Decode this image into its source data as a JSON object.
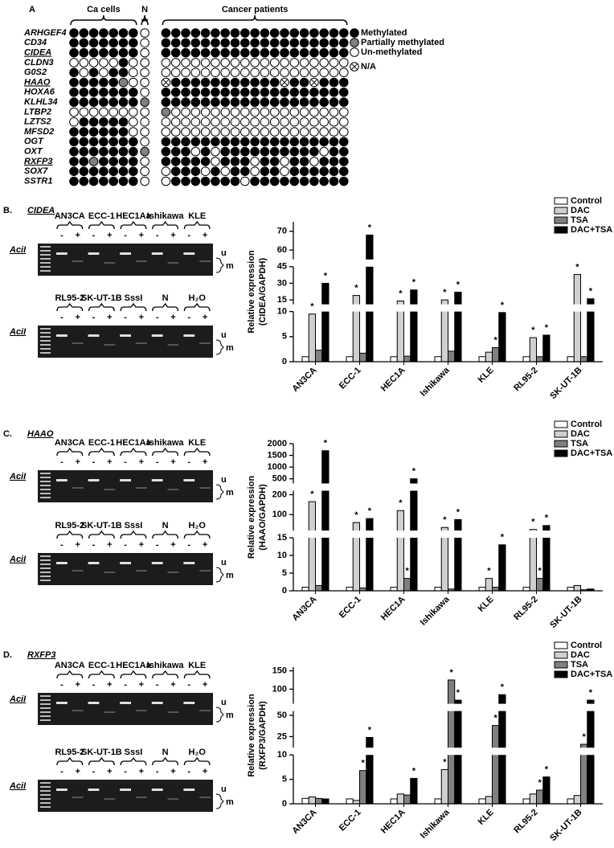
{
  "panel_a": {
    "label": "A",
    "groups": [
      {
        "label": "Ca cells",
        "count": 7
      },
      {
        "label": "N",
        "count": 1
      },
      {
        "label": "Cancer patients",
        "count": 19
      }
    ],
    "legend": [
      {
        "label": "Methylated",
        "color": "#000000"
      },
      {
        "label": "Partially methylated",
        "color": "#808080"
      },
      {
        "label": "Un-methylated",
        "color": "#ffffff"
      },
      {
        "label": "N/A",
        "color": "#ffffff",
        "cross": true
      }
    ],
    "rows": [
      {
        "gene": "ARHGEF4",
        "underline": false,
        "status": [
          0,
          0,
          0,
          0,
          0,
          0,
          0,
          2,
          0,
          0,
          0,
          0,
          0,
          0,
          0,
          0,
          0,
          0,
          0,
          0,
          0,
          0,
          0,
          0,
          0,
          0,
          0
        ]
      },
      {
        "gene": "CD34",
        "underline": false,
        "status": [
          0,
          0,
          0,
          0,
          0,
          0,
          0,
          2,
          0,
          0,
          0,
          0,
          0,
          0,
          0,
          0,
          0,
          0,
          0,
          0,
          0,
          0,
          0,
          0,
          0,
          0,
          0
        ]
      },
      {
        "gene": "CIDEA",
        "underline": true,
        "status": [
          0,
          0,
          0,
          0,
          0,
          0,
          0,
          2,
          0,
          0,
          0,
          0,
          0,
          0,
          0,
          0,
          0,
          0,
          0,
          0,
          0,
          0,
          0,
          0,
          0,
          0,
          0
        ]
      },
      {
        "gene": "CLDN3",
        "underline": false,
        "status": [
          2,
          2,
          2,
          2,
          2,
          0,
          2,
          2,
          2,
          2,
          2,
          2,
          2,
          2,
          2,
          2,
          2,
          2,
          2,
          2,
          2,
          2,
          2,
          2,
          2,
          2,
          2
        ]
      },
      {
        "gene": "G0S2",
        "underline": false,
        "status": [
          0,
          2,
          0,
          2,
          0,
          0,
          2,
          2,
          2,
          2,
          2,
          2,
          2,
          2,
          2,
          2,
          2,
          2,
          2,
          2,
          2,
          2,
          2,
          2,
          2,
          2,
          2
        ]
      },
      {
        "gene": "HAAO",
        "underline": true,
        "status": [
          0,
          0,
          0,
          0,
          0,
          1,
          2,
          2,
          3,
          0,
          0,
          0,
          0,
          0,
          0,
          0,
          0,
          0,
          0,
          0,
          3,
          0,
          0,
          3,
          0,
          0,
          0
        ]
      },
      {
        "gene": "HOXA6",
        "underline": false,
        "status": [
          0,
          0,
          0,
          0,
          0,
          0,
          0,
          2,
          0,
          0,
          0,
          0,
          0,
          0,
          0,
          0,
          0,
          0,
          0,
          0,
          0,
          0,
          0,
          0,
          0,
          0,
          0
        ]
      },
      {
        "gene": "KLHL34",
        "underline": false,
        "status": [
          0,
          0,
          0,
          0,
          0,
          0,
          0,
          1,
          0,
          0,
          0,
          0,
          0,
          0,
          0,
          0,
          0,
          0,
          0,
          0,
          0,
          0,
          0,
          0,
          0,
          0,
          0
        ]
      },
      {
        "gene": "LTBP2",
        "underline": false,
        "status": [
          2,
          2,
          2,
          2,
          2,
          2,
          2,
          2,
          1,
          2,
          2,
          2,
          2,
          2,
          2,
          2,
          2,
          2,
          2,
          2,
          2,
          2,
          2,
          2,
          2,
          2,
          2
        ]
      },
      {
        "gene": "LZTS2",
        "underline": false,
        "status": [
          2,
          0,
          0,
          0,
          0,
          0,
          2,
          2,
          2,
          2,
          2,
          2,
          2,
          2,
          2,
          2,
          2,
          2,
          2,
          2,
          2,
          2,
          2,
          2,
          2,
          2,
          2
        ]
      },
      {
        "gene": "MFSD2",
        "underline": false,
        "status": [
          0,
          0,
          0,
          0,
          0,
          0,
          2,
          2,
          2,
          2,
          2,
          2,
          2,
          2,
          2,
          2,
          2,
          2,
          2,
          2,
          2,
          2,
          2,
          2,
          2,
          2,
          2
        ]
      },
      {
        "gene": "OGT",
        "underline": false,
        "status": [
          0,
          0,
          0,
          0,
          0,
          0,
          0,
          2,
          0,
          0,
          0,
          0,
          0,
          0,
          0,
          0,
          0,
          0,
          0,
          0,
          0,
          0,
          0,
          0,
          0,
          0,
          0
        ]
      },
      {
        "gene": "OXT",
        "underline": false,
        "status": [
          0,
          0,
          0,
          0,
          0,
          0,
          0,
          1,
          0,
          0,
          0,
          2,
          0,
          2,
          0,
          0,
          0,
          0,
          0,
          0,
          0,
          0,
          0,
          0,
          2,
          0,
          0
        ]
      },
      {
        "gene": "RXFP3",
        "underline": true,
        "status": [
          0,
          0,
          1,
          0,
          0,
          0,
          0,
          2,
          0,
          0,
          0,
          0,
          0,
          2,
          0,
          0,
          0,
          2,
          0,
          0,
          2,
          0,
          0,
          2,
          0,
          0,
          0
        ]
      },
      {
        "gene": "SOX7",
        "underline": false,
        "status": [
          0,
          0,
          0,
          0,
          0,
          0,
          0,
          2,
          2,
          0,
          0,
          0,
          2,
          0,
          2,
          0,
          0,
          2,
          0,
          0,
          2,
          0,
          0,
          0,
          0,
          0,
          0
        ]
      },
      {
        "gene": "SSTR1",
        "underline": false,
        "status": [
          0,
          0,
          0,
          0,
          0,
          0,
          0,
          2,
          2,
          0,
          0,
          0,
          0,
          0,
          0,
          0,
          2,
          0,
          0,
          0,
          0,
          0,
          0,
          0,
          0,
          0,
          0
        ]
      }
    ]
  },
  "panels": [
    {
      "label": "B.",
      "gene": "CIDEA",
      "enzyme": "AciI",
      "enzyme_states": [
        "-",
        "+"
      ],
      "band_labels": [
        "u",
        "m"
      ],
      "gels": [
        {
          "lanes": [
            "AN3CA",
            "ECC-1",
            "HEC1Aa",
            "Ishikawa",
            "KLE"
          ]
        },
        {
          "lanes": [
            "RL95-2",
            "SK-UT-1B",
            "SssI",
            "N",
            "H₂O"
          ]
        }
      ],
      "chart_data": {
        "type": "bar",
        "ylabel": [
          "Relative expression",
          "(CIDEA/GAPDH)"
        ],
        "marker": "*",
        "categories": [
          "AN3CA",
          "ECC-1",
          "HEC1A",
          "Ishikawa",
          "KLE",
          "RL95-2",
          "SK-UT-1B"
        ],
        "segments": [
          {
            "ylim": [
              0,
              10
            ],
            "yticks": [
              0,
              5,
              10
            ]
          },
          {
            "ylim": [
              11,
              45
            ],
            "yticks": [
              15,
              30,
              45
            ]
          },
          {
            "ylim": [
              55,
              75
            ],
            "yticks": [
              60,
              70
            ]
          }
        ],
        "series": [
          {
            "name": "Control",
            "color": "#ffffff",
            "values": [
              1,
              1,
              1,
              1,
              1,
              1,
              1
            ],
            "significant": [
              false,
              false,
              false,
              false,
              false,
              false,
              false
            ]
          },
          {
            "name": "DAC",
            "color": "#d0d0d0",
            "values": [
              9.5,
              19,
              14,
              15,
              1.9,
              4.8,
              38
            ],
            "significant": [
              true,
              true,
              true,
              true,
              false,
              true,
              true
            ]
          },
          {
            "name": "TSA",
            "color": "#808080",
            "values": [
              2.3,
              1.7,
              1.1,
              2.1,
              2.8,
              1,
              1
            ],
            "significant": [
              false,
              false,
              false,
              false,
              true,
              false,
              false
            ]
          },
          {
            "name": "DAC+TSA",
            "color": "#000000",
            "values": [
              30,
              68,
              24,
              22,
              9.8,
              5.3,
              16
            ],
            "significant": [
              true,
              true,
              true,
              true,
              true,
              true,
              true
            ]
          }
        ]
      }
    },
    {
      "label": "C.",
      "gene": "HAAO",
      "enzyme": "AciI",
      "enzyme_states": [
        "-",
        "+"
      ],
      "band_labels": [
        "u",
        "m"
      ],
      "gels": [
        {
          "lanes": [
            "AN3CA",
            "ECC-1",
            "HEC1Aa",
            "Ishikawa",
            "KLE"
          ]
        },
        {
          "lanes": [
            "RL95-2",
            "SK-UT-1B",
            "SssI",
            "N",
            "H₂O"
          ]
        }
      ],
      "chart_data": {
        "type": "bar",
        "ylabel": [
          "Relative expression",
          "(HAAO/GAPDH)"
        ],
        "marker": "*",
        "categories": [
          "AN3CA",
          "ECC-1",
          "HEC1A",
          "Ishikawa",
          "KLE",
          "RL95-2",
          "SK-UT-1B"
        ],
        "segments": [
          {
            "ylim": [
              0,
              15
            ],
            "yticks": [
              0,
              5,
              10,
              15
            ]
          },
          {
            "ylim": [
              20,
              220
            ],
            "yticks": [
              100,
              200
            ]
          },
          {
            "ylim": [
              300,
              2000
            ],
            "yticks": [
              500,
              1000,
              1500,
              2000
            ]
          }
        ],
        "series": [
          {
            "name": "Control",
            "color": "#ffffff",
            "values": [
              1,
              1,
              1,
              1,
              1,
              1,
              1
            ],
            "significant": [
              false,
              false,
              false,
              false,
              false,
              false,
              false
            ]
          },
          {
            "name": "DAC",
            "color": "#d0d0d0",
            "values": [
              165,
              60,
              120,
              35,
              3.5,
              25,
              1.5
            ],
            "significant": [
              true,
              true,
              true,
              true,
              true,
              true,
              false
            ]
          },
          {
            "name": "TSA",
            "color": "#808080",
            "values": [
              1.5,
              0.8,
              3.5,
              0.5,
              1,
              3.5,
              0.3
            ],
            "significant": [
              false,
              false,
              true,
              false,
              false,
              true,
              false
            ]
          },
          {
            "name": "DAC+TSA",
            "color": "#000000",
            "values": [
              1700,
              80,
              500,
              75,
              13,
              45,
              0.5
            ],
            "significant": [
              true,
              true,
              true,
              true,
              true,
              true,
              false
            ]
          }
        ]
      }
    },
    {
      "label": "D.",
      "gene": "RXFP3",
      "enzyme": "AciI",
      "enzyme_states": [
        "-",
        "+"
      ],
      "band_labels": [
        "u",
        "m"
      ],
      "gels": [
        {
          "lanes": [
            "AN3CA",
            "ECC-1",
            "HEC1Aa",
            "Ishikawa",
            "KLE"
          ]
        },
        {
          "lanes": [
            "RL95-2",
            "SK-UT-1B",
            "SssI",
            "N",
            "H₂O"
          ]
        }
      ],
      "chart_data": {
        "type": "bar",
        "ylabel": [
          "Relative expression",
          "(RXFP3/GAPDH)"
        ],
        "marker": "*",
        "categories": [
          "AN3CA",
          "ECC-1",
          "HEC1A",
          "Ishikawa",
          "KLE",
          "RL95-2",
          "SK-UT-1B"
        ],
        "segments": [
          {
            "ylim": [
              0,
              10
            ],
            "yticks": [
              0,
              5,
              10
            ]
          },
          {
            "ylim": [
              12,
              55
            ],
            "yticks": [
              25,
              50
            ]
          },
          {
            "ylim": [
              60,
              160
            ],
            "yticks": [
              100,
              150
            ]
          }
        ],
        "series": [
          {
            "name": "Control",
            "color": "#ffffff",
            "values": [
              1.1,
              1,
              1,
              1,
              1,
              1,
              1
            ],
            "significant": [
              false,
              false,
              false,
              false,
              false,
              false,
              false
            ]
          },
          {
            "name": "DAC",
            "color": "#d0d0d0",
            "values": [
              1.4,
              0.7,
              2,
              7,
              1.5,
              2,
              1.7
            ],
            "significant": [
              false,
              false,
              false,
              true,
              false,
              false,
              false
            ]
          },
          {
            "name": "TSA",
            "color": "#808080",
            "values": [
              1.1,
              6.8,
              1.8,
              125,
              38,
              2.8,
              16
            ],
            "significant": [
              false,
              true,
              false,
              true,
              true,
              true,
              true
            ]
          },
          {
            "name": "DAC+TSA",
            "color": "#000000",
            "values": [
              1,
              24,
              5.2,
              70,
              85,
              5.5,
              70
            ],
            "significant": [
              false,
              true,
              true,
              true,
              true,
              true,
              true
            ]
          }
        ]
      }
    }
  ]
}
